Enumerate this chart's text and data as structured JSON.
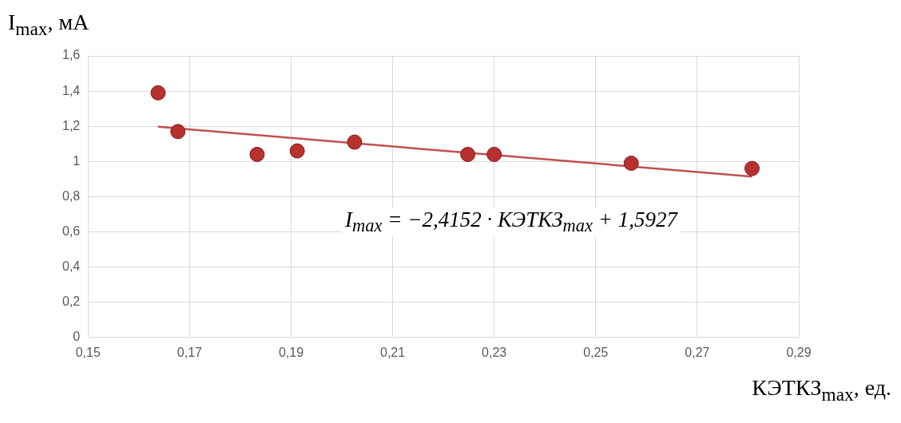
{
  "chart_data": {
    "type": "scatter",
    "xlabel": "КЭТКЗ$_{max}$, ед.",
    "ylabel": "I$_{max}$, мА",
    "xlim": [
      0.15,
      0.29
    ],
    "xticks": [
      {
        "value": 0.15,
        "label": "0,15"
      },
      {
        "value": 0.17,
        "label": "0,17"
      },
      {
        "value": 0.19,
        "label": "0,19"
      },
      {
        "value": 0.21,
        "label": "0,21"
      },
      {
        "value": 0.23,
        "label": "0,23"
      },
      {
        "value": 0.25,
        "label": "0,25"
      },
      {
        "value": 0.27,
        "label": "0,27"
      },
      {
        "value": 0.29,
        "label": "0,29"
      }
    ],
    "ylim": [
      0,
      1.6
    ],
    "yticks": [
      0,
      {
        "value": 0.2,
        "label": "0,2"
      },
      {
        "value": 0.4,
        "label": "0,4"
      },
      {
        "value": 0.6,
        "label": "0,6"
      },
      {
        "value": 0.8,
        "label": "0,8"
      },
      1,
      {
        "value": 1.2,
        "label": "1,2"
      },
      {
        "value": 1.4,
        "label": "1,4"
      },
      {
        "value": 1.6,
        "label": "1,6"
      }
    ],
    "grid": true,
    "marker": "circle",
    "series": [
      {
        "type": "scatter",
        "color": "#b8312f",
        "x": [
          0.1638,
          0.1677,
          0.1833,
          0.1912,
          0.2025,
          0.2248,
          0.23,
          0.257,
          0.2808
        ],
        "values": [
          1.39,
          1.17,
          1.04,
          1.06,
          1.11,
          1.04,
          1.04,
          0.99,
          0.96
        ]
      },
      {
        "type": "line",
        "color": "#c0504d",
        "marker": "none",
        "line_style": "solid",
        "x": [
          0.1638,
          0.2808
        ],
        "values": [
          1.197,
          0.914
        ]
      }
    ],
    "annotations": [
      "I$_{max}$ = −2,4152 · КЭТКЗ$_{max}$ + 1,5927"
    ]
  }
}
